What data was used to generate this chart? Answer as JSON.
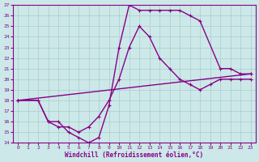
{
  "xlabel": "Windchill (Refroidissement éolien,°C)",
  "bg_color": "#cce8e8",
  "line_color": "#880088",
  "grid_color": "#aacccc",
  "xlim": [
    -0.5,
    23.5
  ],
  "ylim": [
    14,
    27
  ],
  "xticks": [
    0,
    1,
    2,
    3,
    4,
    5,
    6,
    7,
    8,
    9,
    10,
    11,
    12,
    13,
    14,
    15,
    16,
    17,
    18,
    19,
    20,
    21,
    22,
    23
  ],
  "yticks": [
    14,
    15,
    16,
    17,
    18,
    19,
    20,
    21,
    22,
    23,
    24,
    25,
    26,
    27
  ],
  "line1_x": [
    0,
    2,
    3,
    4,
    5,
    6,
    7,
    8,
    9,
    10,
    11,
    12,
    13,
    14,
    15,
    16,
    17,
    18,
    20,
    21,
    22,
    23
  ],
  "line1_y": [
    18,
    18,
    16,
    16,
    15,
    14.5,
    14,
    14.5,
    17.5,
    23,
    27,
    26.5,
    26.5,
    26.5,
    26.5,
    26.5,
    26,
    25.5,
    21,
    21,
    20.5,
    20.5
  ],
  "line2_x": [
    0,
    2,
    3,
    4,
    5,
    6,
    7,
    8,
    9,
    10,
    11,
    12,
    13,
    14,
    15,
    16,
    17,
    18,
    19,
    20,
    21,
    22,
    23
  ],
  "line2_y": [
    18,
    18,
    16,
    15.5,
    15.5,
    15,
    15.5,
    16.5,
    18,
    20,
    23,
    25,
    24,
    22,
    21,
    20,
    19.5,
    19,
    19.5,
    20,
    20,
    20,
    20
  ],
  "line3_x": [
    0,
    23
  ],
  "line3_y": [
    18,
    20.5
  ],
  "marker_size": 3,
  "linewidth": 1.0
}
